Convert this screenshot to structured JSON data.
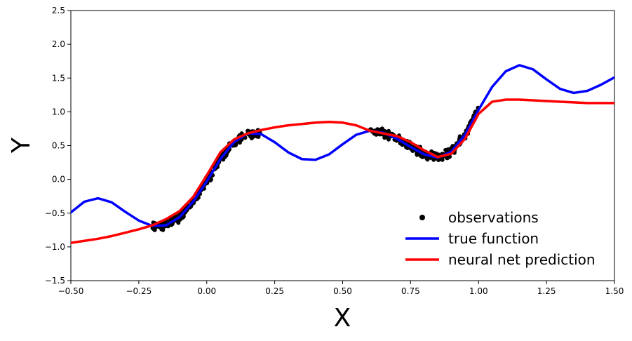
{
  "chart_data": {
    "type": "line",
    "title": "",
    "xlabel": "X",
    "ylabel": "Y",
    "xlim": [
      -0.5,
      1.5
    ],
    "ylim": [
      -1.5,
      2.5
    ],
    "xticks": [
      "−0.50",
      "−0.25",
      "0.00",
      "0.25",
      "0.50",
      "0.75",
      "1.00",
      "1.25",
      "1.50"
    ],
    "yticks": [
      "−1.5",
      "−1.0",
      "−0.5",
      "0.0",
      "0.5",
      "1.0",
      "1.5",
      "2.0",
      "2.5"
    ],
    "grid": false,
    "legend_position": "bottom-right",
    "series": [
      {
        "name": "observations",
        "kind": "scatter",
        "color": "#000000",
        "x_ranges": [
          [
            -0.2,
            0.2
          ],
          [
            0.6,
            1.0
          ]
        ],
        "approx_count": 600,
        "noise": 0.03
      },
      {
        "name": "true function",
        "kind": "line",
        "color": "#0000ff",
        "x": [
          -0.5,
          -0.45,
          -0.4,
          -0.35,
          -0.3,
          -0.25,
          -0.2,
          -0.15,
          -0.1,
          -0.05,
          0.0,
          0.05,
          0.1,
          0.15,
          0.2,
          0.25,
          0.3,
          0.35,
          0.4,
          0.45,
          0.5,
          0.55,
          0.6,
          0.65,
          0.7,
          0.75,
          0.8,
          0.85,
          0.9,
          0.95,
          1.0,
          1.05,
          1.1,
          1.15,
          1.2,
          1.25,
          1.3,
          1.35,
          1.4,
          1.45,
          1.5
        ],
        "y": [
          -0.49,
          -0.33,
          -0.28,
          -0.34,
          -0.48,
          -0.61,
          -0.69,
          -0.68,
          -0.56,
          -0.33,
          -0.03,
          0.3,
          0.55,
          0.68,
          0.67,
          0.55,
          0.4,
          0.3,
          0.29,
          0.37,
          0.52,
          0.66,
          0.72,
          0.69,
          0.6,
          0.48,
          0.37,
          0.32,
          0.41,
          0.66,
          1.03,
          1.37,
          1.6,
          1.69,
          1.63,
          1.48,
          1.34,
          1.28,
          1.31,
          1.4,
          1.51
        ]
      },
      {
        "name": "neural net prediction",
        "kind": "line",
        "color": "#ff0000",
        "x": [
          -0.5,
          -0.45,
          -0.4,
          -0.35,
          -0.3,
          -0.25,
          -0.2,
          -0.15,
          -0.1,
          -0.05,
          0.0,
          0.05,
          0.1,
          0.15,
          0.2,
          0.25,
          0.3,
          0.35,
          0.4,
          0.45,
          0.5,
          0.55,
          0.6,
          0.65,
          0.7,
          0.75,
          0.8,
          0.85,
          0.9,
          0.95,
          1.0,
          1.05,
          1.1,
          1.15,
          1.2,
          1.25,
          1.3,
          1.35,
          1.4,
          1.45,
          1.5
        ],
        "y": [
          -0.94,
          -0.91,
          -0.88,
          -0.84,
          -0.79,
          -0.74,
          -0.68,
          -0.59,
          -0.47,
          -0.26,
          0.06,
          0.4,
          0.59,
          0.68,
          0.73,
          0.77,
          0.8,
          0.82,
          0.84,
          0.85,
          0.84,
          0.8,
          0.72,
          0.68,
          0.64,
          0.55,
          0.43,
          0.33,
          0.38,
          0.6,
          0.97,
          1.15,
          1.18,
          1.18,
          1.17,
          1.16,
          1.15,
          1.14,
          1.13,
          1.13,
          1.13
        ]
      }
    ]
  }
}
